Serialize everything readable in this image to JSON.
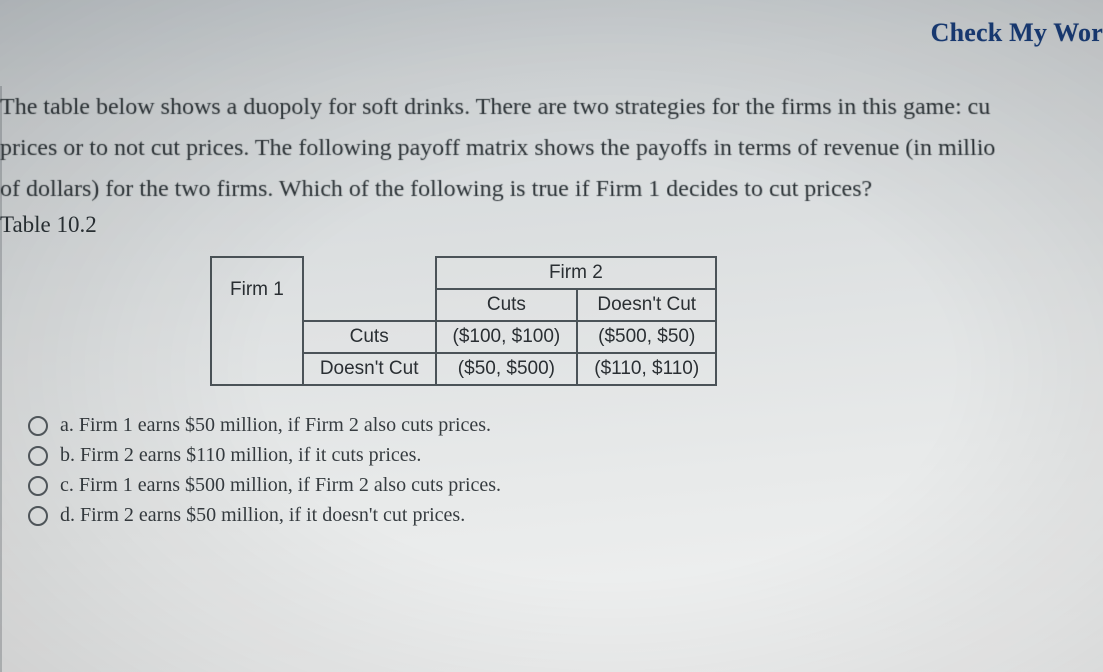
{
  "header": {
    "check_link": "Check My Wor",
    "check_color": "#1a3e7a"
  },
  "question": {
    "line1": "The table below shows a duopoly for soft drinks. There are two strategies for the firms in this game: cu",
    "line2": "prices or to not cut prices. The following payoff matrix shows the payoffs in terms of revenue (in millio",
    "line3": "of dollars) for the two firms. Which of the following is true if Firm 1 decides to cut prices?",
    "table_caption": "Table 10.2"
  },
  "matrix": {
    "row_player": "Firm 1",
    "col_player": "Firm 2",
    "row_strategies": [
      "Cuts",
      "Doesn't Cut"
    ],
    "col_strategies": [
      "Cuts",
      "Doesn't Cut"
    ],
    "cells": {
      "r0c0": "($100, $100)",
      "r0c1": "($500, $50)",
      "r1c0": "($50, $500)",
      "r1c1": "($110, $110)"
    },
    "border_color": "#4b5358",
    "font_family": "Verdana",
    "font_size_pt": 14
  },
  "options": {
    "a": "a. Firm 1 earns $50 million, if Firm 2 also cuts prices.",
    "b": "b. Firm 2 earns $110 million, if it cuts prices.",
    "c": "c. Firm 1 earns $500 million, if Firm 2 also cuts prices.",
    "d": "d. Firm 2 earns $50 million, if it doesn't cut prices."
  },
  "styling": {
    "body_bg_from": "#c9cfd3",
    "body_bg_to": "#f2f3f3",
    "text_color": "#2b3236",
    "option_font_size_pt": 15,
    "question_font_size_pt": 18
  }
}
